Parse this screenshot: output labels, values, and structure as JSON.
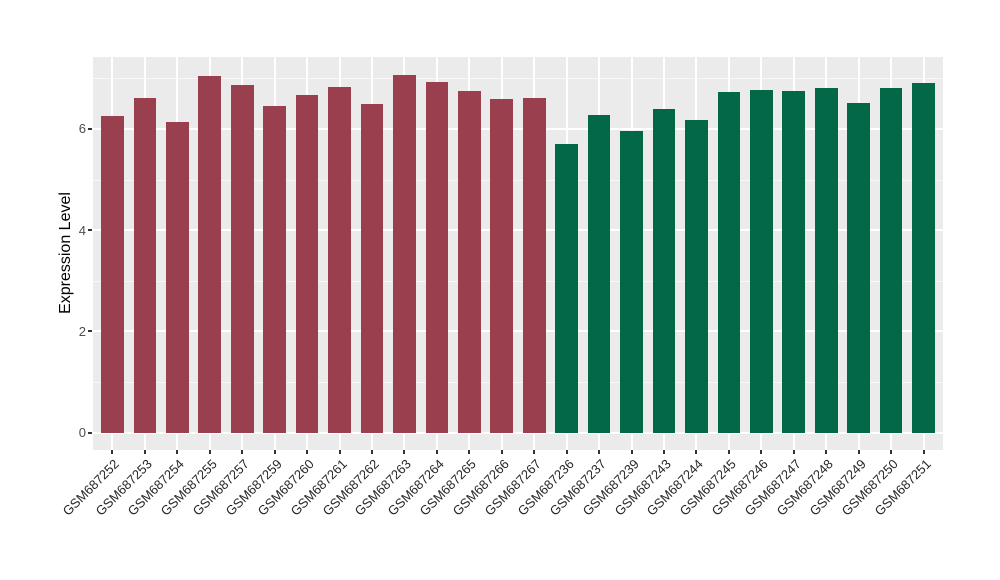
{
  "chart_data": {
    "type": "bar",
    "title": "",
    "xlabel": "",
    "ylabel": "Expression Level",
    "ylim": [
      0,
      7.4
    ],
    "yticks": [
      0,
      2,
      4,
      6
    ],
    "minor_gridlines": [
      1,
      3,
      5,
      7
    ],
    "grid": "on",
    "legend": "none",
    "categories": [
      "GSM687252",
      "GSM687253",
      "GSM687254",
      "GSM687255",
      "GSM687257",
      "GSM687259",
      "GSM687260",
      "GSM687261",
      "GSM687262",
      "GSM687263",
      "GSM687264",
      "GSM687265",
      "GSM687266",
      "GSM687267",
      "GSM687236",
      "GSM687237",
      "GSM687239",
      "GSM687243",
      "GSM687244",
      "GSM687245",
      "GSM687246",
      "GSM687247",
      "GSM687248",
      "GSM687249",
      "GSM687250",
      "GSM687251"
    ],
    "values": [
      6.26,
      6.62,
      6.14,
      7.05,
      6.86,
      6.46,
      6.67,
      6.82,
      6.49,
      7.07,
      6.93,
      6.76,
      6.6,
      6.61,
      5.7,
      6.27,
      5.96,
      6.4,
      6.18,
      6.73,
      6.77,
      6.75,
      6.81,
      6.51,
      6.81,
      6.9
    ],
    "bar_groups": [
      "red",
      "red",
      "red",
      "red",
      "red",
      "red",
      "red",
      "red",
      "red",
      "red",
      "red",
      "red",
      "red",
      "red",
      "green",
      "green",
      "green",
      "green",
      "green",
      "green",
      "green",
      "green",
      "green",
      "green",
      "green",
      "green"
    ],
    "group_colors": {
      "red": "#993F4D",
      "green": "#026848"
    }
  },
  "style": {
    "panel_bg": "#EBEBEB",
    "grid_color": "#FFFFFF",
    "axis_text_color": "#4D4D4D",
    "x_label_color": "#262626",
    "tick_color": "#333333",
    "background": "#FFFFFF"
  }
}
